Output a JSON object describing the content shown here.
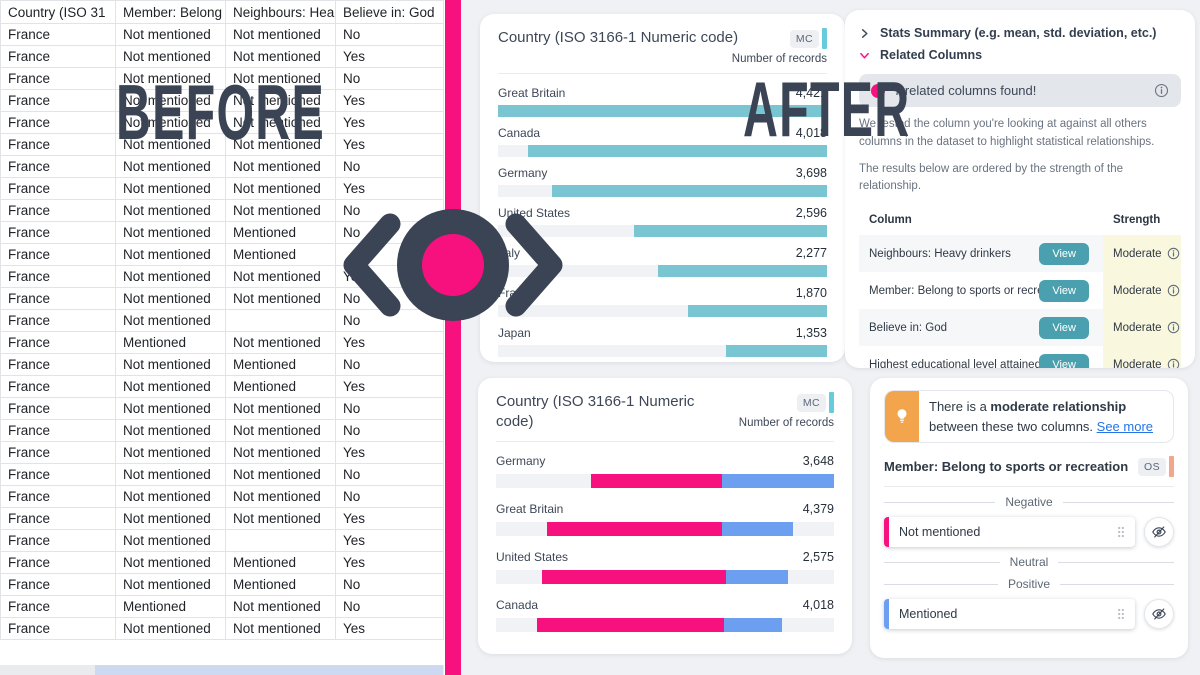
{
  "overlay": {
    "before": "BEFORE",
    "after": "AFTER"
  },
  "colors": {
    "accent_pink": "#f7117e",
    "accent_teal": "#66ccdb",
    "bar_teal": "#79c6d2",
    "bar_blue": "#6d9ff0",
    "view_button": "#4aa0ae",
    "strength_bg": "#faf7df",
    "callout_orange": "#f2a54c",
    "badge_salmon": "#f2a68c",
    "dark_slate": "#3a4454",
    "link_blue": "#2673e8"
  },
  "spreadsheet": {
    "headers": [
      "Country (ISO 31",
      "Member: Belong",
      "Neighbours: Hea",
      "Believe in: God"
    ],
    "rows": [
      [
        "France",
        "Not mentioned",
        "Not mentioned",
        "No"
      ],
      [
        "France",
        "Not mentioned",
        "Not mentioned",
        "Yes"
      ],
      [
        "France",
        "Not mentioned",
        "Not mentioned",
        "No"
      ],
      [
        "France",
        "Not mentioned",
        "Not mentioned",
        "Yes"
      ],
      [
        "France",
        "Not mentioned",
        "Not mentioned",
        "Yes"
      ],
      [
        "France",
        "Not mentioned",
        "Not mentioned",
        "Yes"
      ],
      [
        "France",
        "Not mentioned",
        "Not mentioned",
        "No"
      ],
      [
        "France",
        "Not mentioned",
        "Not mentioned",
        "Yes"
      ],
      [
        "France",
        "Not mentioned",
        "Not mentioned",
        "No"
      ],
      [
        "France",
        "Not mentioned",
        "Mentioned",
        "No"
      ],
      [
        "France",
        "Not mentioned",
        "Mentioned",
        ""
      ],
      [
        "France",
        "Not mentioned",
        "Not mentioned",
        "Yes"
      ],
      [
        "France",
        "Not mentioned",
        "Not mentioned",
        "No"
      ],
      [
        "France",
        "Not mentioned",
        "",
        "No"
      ],
      [
        "France",
        "Mentioned",
        "Not mentioned",
        "Yes"
      ],
      [
        "France",
        "Not mentioned",
        "Mentioned",
        "No"
      ],
      [
        "France",
        "Not mentioned",
        "Mentioned",
        "Yes"
      ],
      [
        "France",
        "Not mentioned",
        "Not mentioned",
        "No"
      ],
      [
        "France",
        "Not mentioned",
        "Not mentioned",
        "No"
      ],
      [
        "France",
        "Not mentioned",
        "Not mentioned",
        "Yes"
      ],
      [
        "France",
        "Not mentioned",
        "Not mentioned",
        "No"
      ],
      [
        "France",
        "Not mentioned",
        "Not mentioned",
        "No"
      ],
      [
        "France",
        "Not mentioned",
        "Not mentioned",
        "Yes"
      ],
      [
        "France",
        "Not mentioned",
        "",
        "Yes"
      ],
      [
        "France",
        "Not mentioned",
        "Mentioned",
        "Yes"
      ],
      [
        "France",
        "Not mentioned",
        "Mentioned",
        "No"
      ],
      [
        "France",
        "Mentioned",
        "Not mentioned",
        "No"
      ],
      [
        "France",
        "Not mentioned",
        "Not mentioned",
        "Yes"
      ]
    ]
  },
  "chart_data": [
    {
      "type": "bar",
      "title": "Country (ISO 3166-1 Numeric code)",
      "badge": "MC",
      "value_axis_label": "Number of records",
      "orientation": "horizontal",
      "bar_alignment": "right",
      "bar_color": "#79c6d2",
      "track_color": "#f1f2f5",
      "categories": [
        "Great Britain",
        "Canada",
        "Germany",
        "United States",
        "Italy",
        "France",
        "Japan"
      ],
      "values": [
        4421,
        4018,
        3698,
        2596,
        2277,
        1870,
        1353
      ],
      "value_labels": [
        "4,421",
        "4,018",
        "3,698",
        "2,596",
        "2,277",
        "1,870",
        "1,353"
      ],
      "xmax": 4421
    },
    {
      "type": "stacked-bar",
      "title": "Country (ISO 3166-1 Numeric code)",
      "badge": "MC",
      "value_axis_label": "Number of records",
      "orientation": "horizontal",
      "track_color": "#f1f2f5",
      "categories": [
        "Germany",
        "Great Britain",
        "United States",
        "Canada"
      ],
      "values": [
        3648,
        4379,
        2575,
        4018
      ],
      "value_labels": [
        "3,648",
        "4,379",
        "2,575",
        "4,018"
      ],
      "series": [
        {
          "name": "Not mentioned",
          "color": "#f7117e"
        },
        {
          "name": "Mentioned",
          "color": "#6d9ff0"
        }
      ],
      "segments_pct": [
        {
          "pink": [
            28,
            67
          ],
          "blue": [
            67,
            100
          ]
        },
        {
          "pink": [
            15,
            67
          ],
          "blue": [
            67,
            88
          ]
        },
        {
          "pink": [
            13.5,
            68
          ],
          "blue": [
            68,
            86.5
          ]
        },
        {
          "pink": [
            12,
            67.5
          ],
          "blue": [
            67.5,
            84.5
          ]
        }
      ]
    }
  ],
  "related_panel": {
    "stats_summary": "Stats Summary (e.g. mean, std. deviation, etc.)",
    "related_columns": "Related Columns",
    "banner": "7 related columns found!",
    "description": "We tested the column you're looking at against all others columns in the dataset to highlight statistical relationships.",
    "order_note": "The results below are ordered by the strength of the relationship.",
    "table": {
      "headers": [
        "Column",
        "Strength"
      ],
      "rows": [
        {
          "column": "Neighbours: Heavy drinkers",
          "action": "View",
          "strength": "Moderate"
        },
        {
          "column": "Member: Belong to sports or recreation",
          "action": "View",
          "strength": "Moderate"
        },
        {
          "column": "Believe in: God",
          "action": "View",
          "strength": "Moderate"
        },
        {
          "column": "Highest educational level attained",
          "action": "View",
          "strength": "Moderate"
        }
      ]
    }
  },
  "relationship_panel": {
    "callout": {
      "prefix": "There is a ",
      "bold": "moderate relationship",
      "middle": " between these two columns. ",
      "link": "See more"
    },
    "column_title": "Member: Belong to sports or recreation",
    "column_badge": "OS",
    "sections": [
      {
        "label": "Negative",
        "items": [
          {
            "label": "Not mentioned",
            "accent": "#f7117e"
          }
        ]
      },
      {
        "label": "Neutral",
        "items": []
      },
      {
        "label": "Positive",
        "items": [
          {
            "label": "Mentioned",
            "accent": "#6d9ff0"
          }
        ]
      }
    ]
  }
}
